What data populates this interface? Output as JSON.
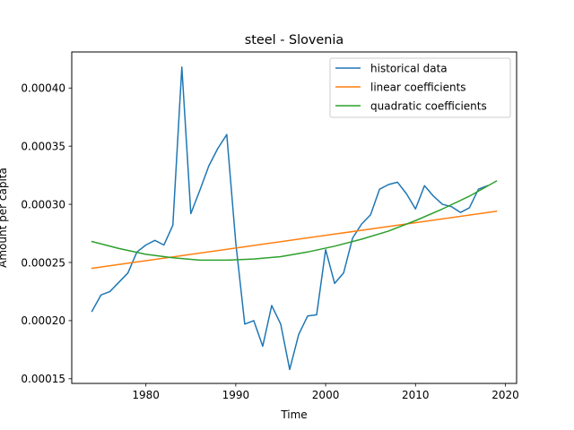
{
  "chart_data": {
    "type": "line",
    "title": "steel - Slovenia",
    "xlabel": "Time",
    "ylabel": "Amount per capita",
    "xlim": [
      1971.75,
      2021.25
    ],
    "ylim": [
      0.000146,
      0.000431
    ],
    "xticks": [
      1980,
      1990,
      2000,
      2010,
      2020
    ],
    "yticks": [
      0.00015,
      0.0002,
      0.00025,
      0.0003,
      0.00035,
      0.0004
    ],
    "ytick_labels": [
      "0.00015",
      "0.00020",
      "0.00025",
      "0.00030",
      "0.00035",
      "0.00040"
    ],
    "grid": false,
    "legend_position": "upper right",
    "series": [
      {
        "name": "historical data",
        "color": "#1f77b4",
        "x": [
          1974,
          1975,
          1976,
          1977,
          1978,
          1979,
          1980,
          1981,
          1982,
          1983,
          1984,
          1985,
          1986,
          1987,
          1988,
          1989,
          1990,
          1991,
          1992,
          1993,
          1994,
          1995,
          1996,
          1997,
          1998,
          1999,
          2000,
          2001,
          2002,
          2003,
          2004,
          2005,
          2006,
          2007,
          2008,
          2009,
          2010,
          2011,
          2012,
          2013,
          2014,
          2015,
          2016,
          2017,
          2018
        ],
        "y": [
          0.000208,
          0.000222,
          0.000225,
          0.000233,
          0.000241,
          0.000259,
          0.000265,
          0.000269,
          0.000265,
          0.000282,
          0.000418,
          0.000292,
          0.000312,
          0.000333,
          0.000348,
          0.00036,
          0.000267,
          0.000197,
          0.0002,
          0.000178,
          0.000213,
          0.000197,
          0.000158,
          0.000188,
          0.000204,
          0.000205,
          0.000261,
          0.000232,
          0.000241,
          0.000271,
          0.000283,
          0.000291,
          0.000313,
          0.000317,
          0.000319,
          0.000309,
          0.000296,
          0.000316,
          0.000307,
          0.0003,
          0.000298,
          0.000293,
          0.000297,
          0.000313,
          0.000316
        ]
      },
      {
        "name": "linear coefficients",
        "color": "#ff7f0e",
        "x": [
          1974,
          2019
        ],
        "y": [
          0.000245,
          0.000294
        ]
      },
      {
        "name": "quadratic coefficients",
        "color": "#2ca02c",
        "x": [
          1974,
          1977,
          1980,
          1983,
          1986,
          1989,
          1992,
          1995,
          1998,
          2001,
          2004,
          2007,
          2010,
          2013,
          2016,
          2019
        ],
        "y": [
          0.000268,
          0.000262,
          0.000257,
          0.000254,
          0.000252,
          0.000252,
          0.000253,
          0.000255,
          0.000259,
          0.000264,
          0.00027,
          0.000277,
          0.000286,
          0.000296,
          0.000307,
          0.00032
        ]
      }
    ]
  }
}
